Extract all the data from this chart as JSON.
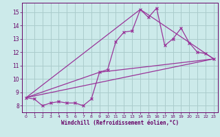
{
  "background_color": "#cceaea",
  "grid_color": "#aacccc",
  "line_color": "#993399",
  "marker_color": "#993399",
  "xlabel": "Windchill (Refroidissement éolien,°C)",
  "xlabel_color": "#660066",
  "tick_color": "#660066",
  "xlim": [
    -0.5,
    23.5
  ],
  "ylim": [
    7.5,
    15.7
  ],
  "yticks": [
    8,
    9,
    10,
    11,
    12,
    13,
    14,
    15
  ],
  "xticks": [
    0,
    1,
    2,
    3,
    4,
    5,
    6,
    7,
    8,
    9,
    10,
    11,
    12,
    13,
    14,
    15,
    16,
    17,
    18,
    19,
    20,
    21,
    22,
    23
  ],
  "series": [
    [
      0,
      8.6
    ],
    [
      1,
      8.5
    ],
    [
      2,
      8.0
    ],
    [
      3,
      8.2
    ],
    [
      4,
      8.3
    ],
    [
      5,
      8.2
    ],
    [
      6,
      8.2
    ],
    [
      7,
      8.0
    ],
    [
      8,
      8.5
    ],
    [
      9,
      10.5
    ],
    [
      10,
      10.7
    ],
    [
      11,
      12.8
    ],
    [
      12,
      13.5
    ],
    [
      13,
      13.6
    ],
    [
      14,
      15.2
    ],
    [
      15,
      14.6
    ],
    [
      16,
      15.3
    ],
    [
      17,
      12.5
    ],
    [
      18,
      13.0
    ],
    [
      19,
      13.8
    ],
    [
      20,
      12.7
    ],
    [
      21,
      12.0
    ],
    [
      22,
      11.9
    ],
    [
      23,
      11.5
    ]
  ],
  "line_straight": [
    [
      0,
      8.6
    ],
    [
      23,
      11.5
    ]
  ],
  "line_mid1": [
    [
      0,
      8.6
    ],
    [
      9,
      10.5
    ],
    [
      23,
      11.5
    ]
  ],
  "line_mid2": [
    [
      0,
      8.6
    ],
    [
      14,
      15.2
    ],
    [
      23,
      11.5
    ]
  ]
}
